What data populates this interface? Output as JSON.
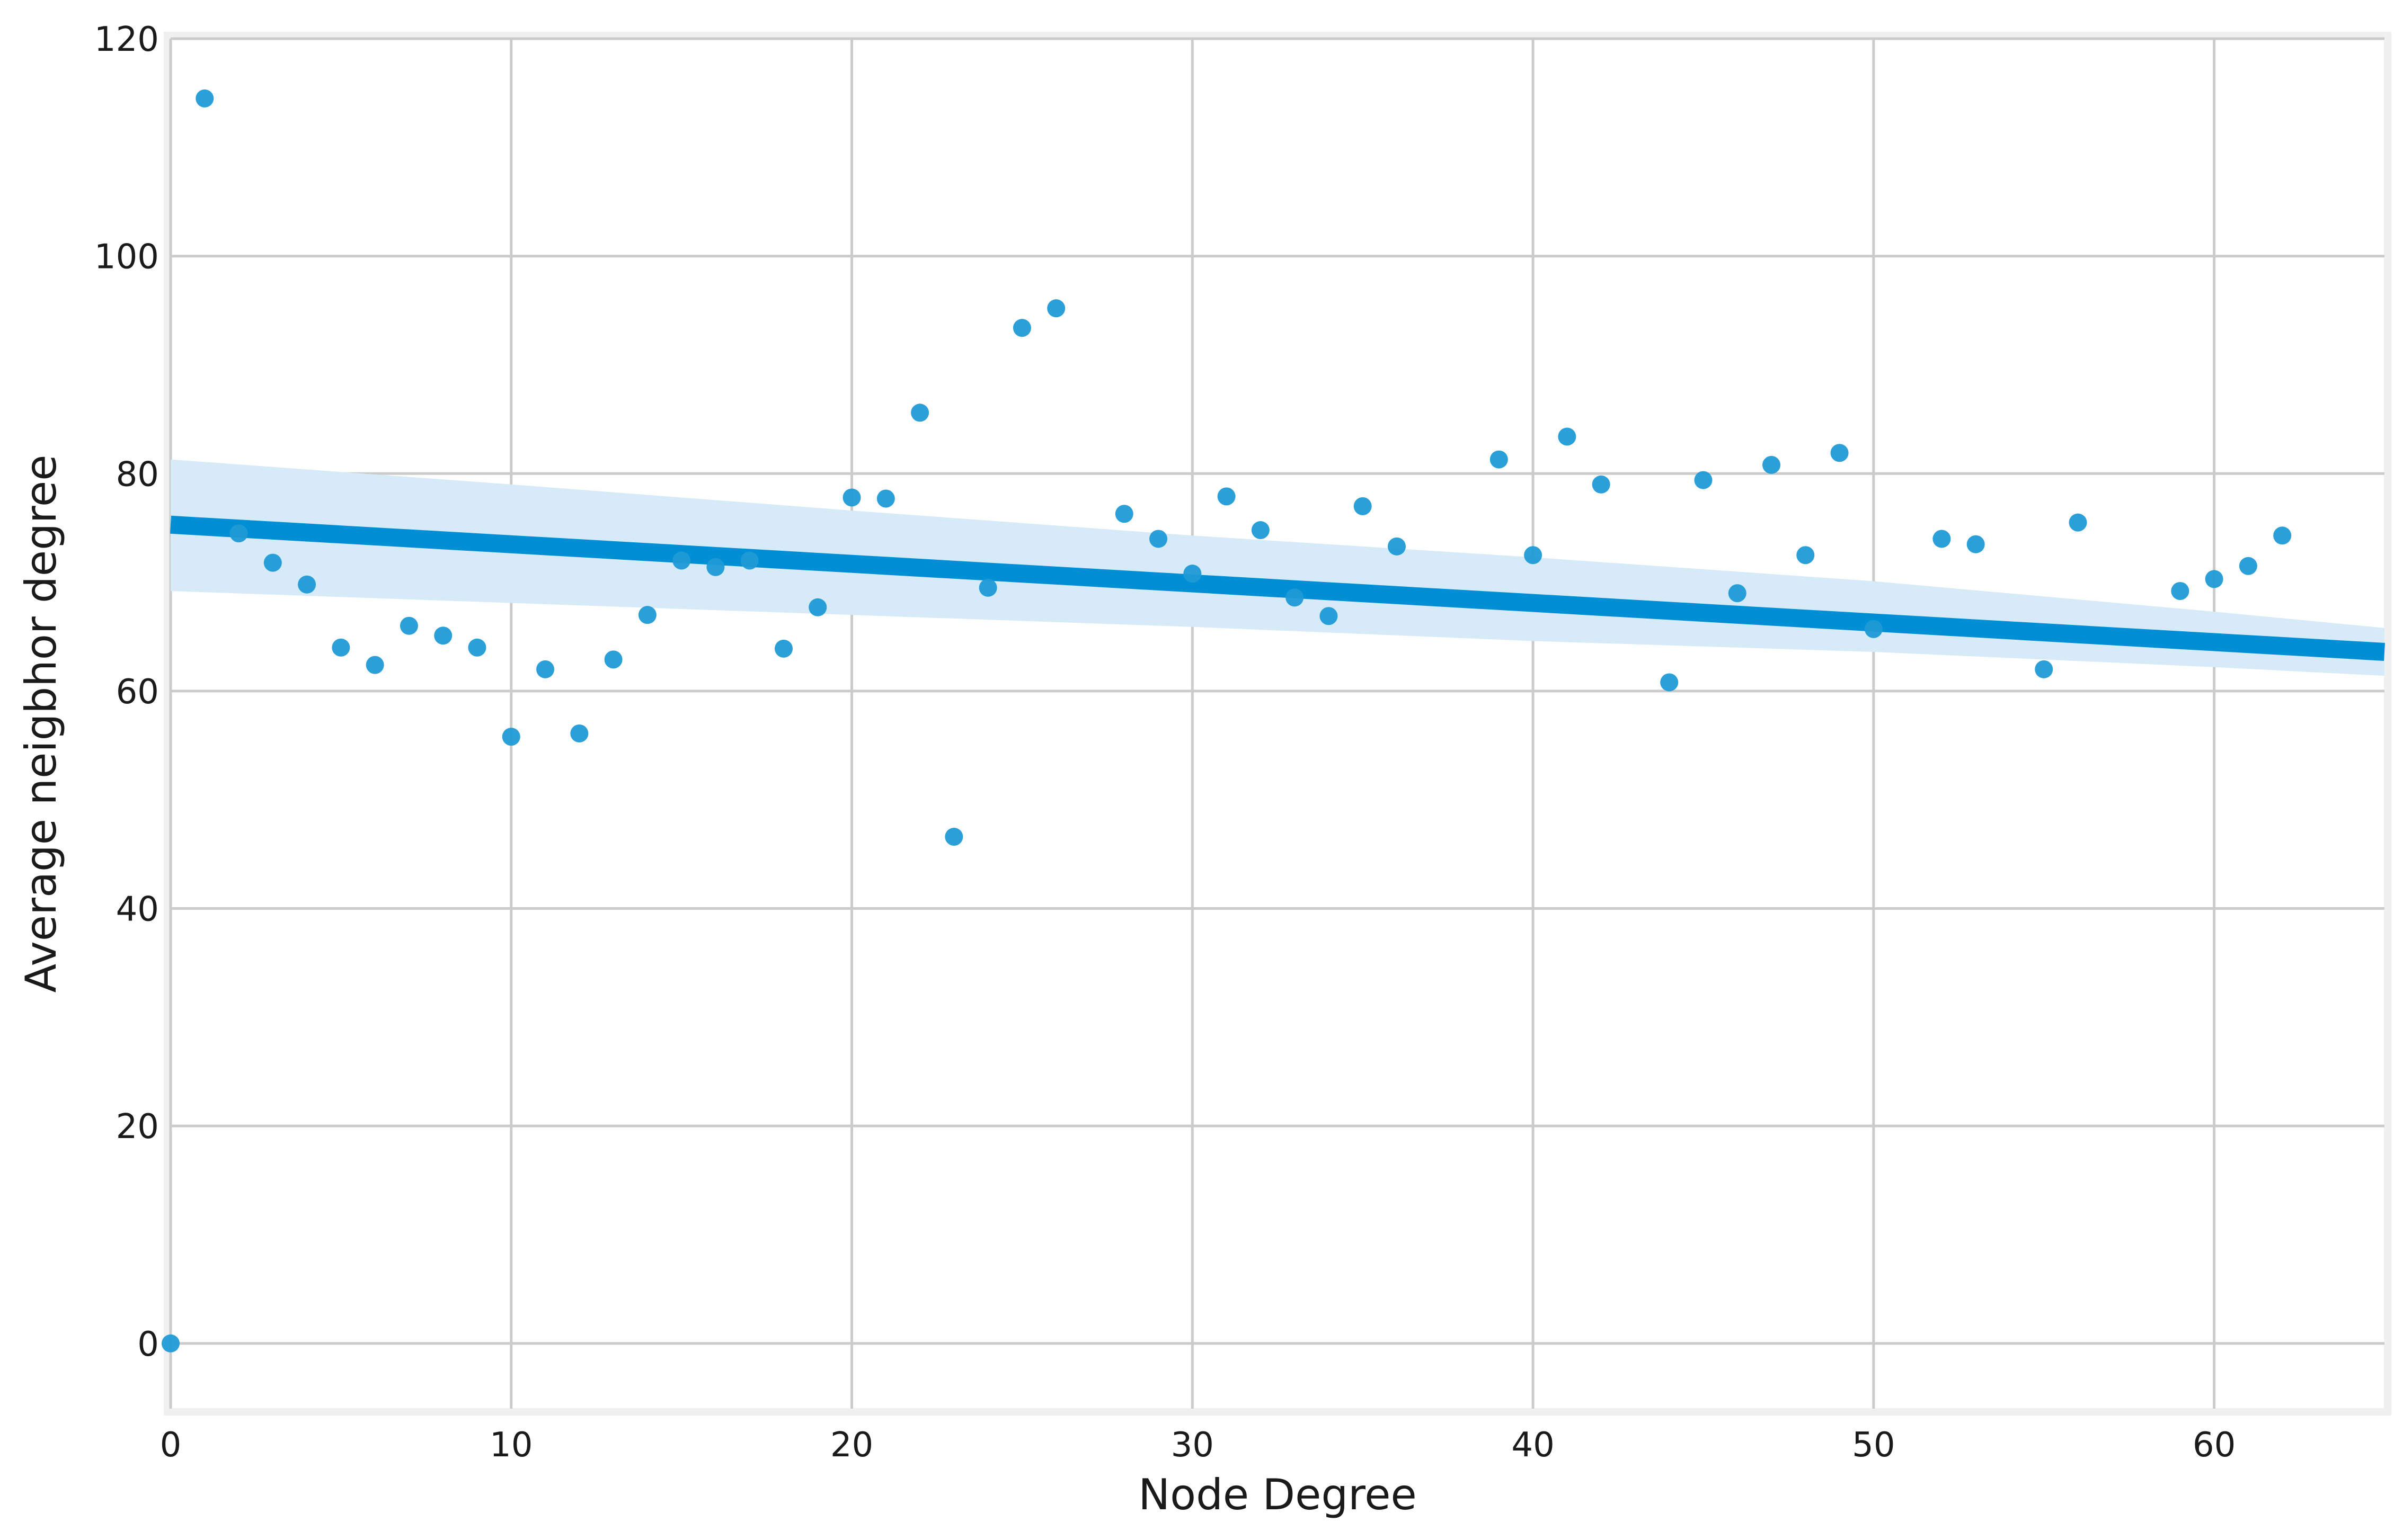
{
  "chart_data": {
    "type": "scatter",
    "title": "",
    "xlabel": "Node Degree",
    "ylabel": "Average neigbhor degree",
    "xlim": [
      0,
      65
    ],
    "ylim": [
      -6,
      120
    ],
    "xticks": [
      0,
      10,
      20,
      30,
      40,
      50,
      60
    ],
    "yticks": [
      0,
      20,
      40,
      60,
      80,
      100,
      120
    ],
    "grid": true,
    "legend": "none",
    "colors": {
      "points": "#1f9ad6",
      "regression_line": "#008fd5",
      "confidence_band": "#d6eaf8",
      "grid": "#cbcbcb",
      "frame": "#f0f0f0"
    },
    "series": [
      {
        "x": [
          0,
          1,
          2,
          3,
          4,
          5,
          6,
          7,
          8,
          9,
          10,
          11,
          12,
          13,
          14,
          15,
          16,
          17,
          18,
          19,
          20,
          21,
          22,
          23,
          24,
          25,
          26,
          28,
          29,
          30,
          31,
          32,
          33,
          34,
          35,
          36,
          39,
          40,
          41,
          42,
          44,
          45,
          46,
          47,
          48,
          49,
          50,
          52,
          53,
          55,
          56,
          59,
          60,
          61,
          62
        ],
        "y": [
          0,
          114.5,
          74.5,
          71.8,
          69.8,
          64.0,
          62.4,
          66.0,
          65.1,
          64.0,
          55.8,
          62.0,
          56.1,
          62.9,
          67.0,
          72.0,
          71.4,
          72.0,
          63.9,
          67.7,
          77.8,
          77.7,
          85.6,
          46.6,
          69.5,
          93.4,
          95.2,
          76.3,
          74.0,
          70.8,
          77.9,
          74.8,
          68.6,
          66.9,
          77.0,
          73.3,
          81.3,
          72.5,
          83.4,
          79.0,
          60.8,
          79.4,
          69.0,
          80.8,
          72.5,
          81.9,
          65.7,
          74.0,
          73.5,
          62.0,
          75.5,
          69.2,
          70.3,
          71.5,
          74.3
        ]
      }
    ],
    "regression": {
      "x": [
        0,
        65
      ],
      "y": [
        75.3,
        63.6
      ]
    },
    "confidence_band": {
      "x": [
        0,
        10,
        20,
        30,
        40,
        50,
        60,
        65
      ],
      "upper": [
        81.3,
        79.0,
        76.6,
        74.3,
        72.3,
        70.1,
        67.3,
        65.8
      ],
      "lower": [
        69.2,
        68.1,
        67.0,
        65.9,
        64.6,
        63.6,
        62.2,
        61.4
      ]
    }
  }
}
